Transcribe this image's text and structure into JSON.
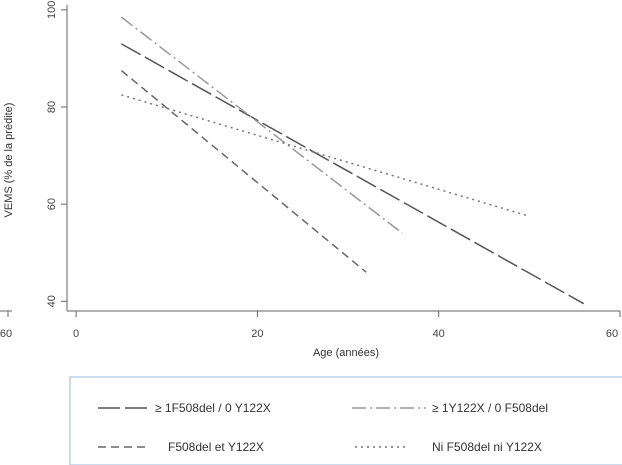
{
  "chart_data": {
    "type": "line",
    "xlabel": "Age (années)",
    "ylabel": "VEMS (% de la prédite)",
    "xlim": [
      -1,
      60
    ],
    "ylim": [
      38,
      101
    ],
    "xticks": [
      0,
      20,
      40,
      60
    ],
    "yticks": [
      40,
      60,
      80,
      100
    ],
    "xtick_labels": [
      "0",
      "20",
      "40",
      "60"
    ],
    "ytick_labels": [
      "40",
      "60",
      "80",
      "100"
    ],
    "cut_label": "60",
    "grid": false,
    "legend_position": "bottom",
    "series": [
      {
        "name": "≥ 1F508del / 0 Y122X",
        "style": "longdash",
        "color": "#555555",
        "x": [
          5,
          56
        ],
        "y": [
          93,
          39.5
        ]
      },
      {
        "name": "≥ 1Y122X / 0 F508del",
        "style": "dashdot",
        "color": "#999999",
        "x": [
          5,
          36
        ],
        "y": [
          98.5,
          54
        ]
      },
      {
        "name": "F508del et Y122X",
        "style": "dash",
        "color": "#666666",
        "x": [
          5,
          32
        ],
        "y": [
          87.5,
          46
        ]
      },
      {
        "name": "Ni F508del ni Y122X",
        "style": "dot",
        "color": "#777777",
        "x": [
          5,
          50
        ],
        "y": [
          82.5,
          57.5
        ]
      }
    ]
  }
}
